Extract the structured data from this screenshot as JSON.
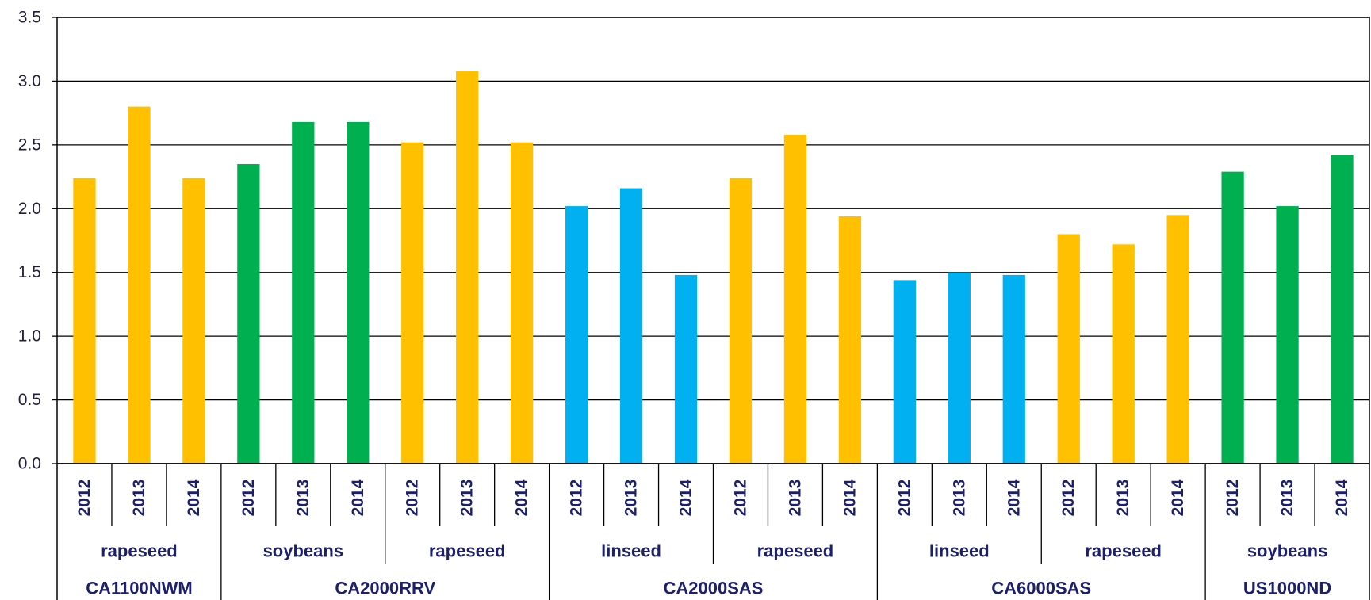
{
  "chart_data": {
    "type": "bar",
    "ylim": [
      0,
      3.5
    ],
    "yticks": [
      "0.0",
      "0.5",
      "1.0",
      "1.5",
      "2.0",
      "2.5",
      "3.0",
      "3.5"
    ],
    "grid": true,
    "colors": {
      "rapeseed": "#FFC000",
      "soybeans": "#00B050",
      "linseed": "#00B0F0"
    },
    "groups": [
      {
        "site": "CA1100NWM",
        "crops": [
          {
            "crop": "rapeseed",
            "years": [
              "2012",
              "2013",
              "2014"
            ],
            "values": [
              2.24,
              2.8,
              2.24
            ]
          }
        ]
      },
      {
        "site": "CA2000RRV",
        "crops": [
          {
            "crop": "soybeans",
            "years": [
              "2012",
              "2013",
              "2014"
            ],
            "values": [
              2.35,
              2.68,
              2.68
            ]
          },
          {
            "crop": "rapeseed",
            "years": [
              "2012",
              "2013",
              "2014"
            ],
            "values": [
              2.52,
              3.08,
              2.52
            ]
          }
        ]
      },
      {
        "site": "CA2000SAS",
        "crops": [
          {
            "crop": "linseed",
            "years": [
              "2012",
              "2013",
              "2014"
            ],
            "values": [
              2.02,
              2.16,
              1.48
            ]
          },
          {
            "crop": "rapeseed",
            "years": [
              "2012",
              "2013",
              "2014"
            ],
            "values": [
              2.24,
              2.58,
              1.94
            ]
          }
        ]
      },
      {
        "site": "CA6000SAS",
        "crops": [
          {
            "crop": "linseed",
            "years": [
              "2012",
              "2013",
              "2014"
            ],
            "values": [
              1.44,
              1.5,
              1.48
            ]
          },
          {
            "crop": "rapeseed",
            "years": [
              "2012",
              "2013",
              "2014"
            ],
            "values": [
              1.8,
              1.72,
              1.95
            ]
          }
        ]
      },
      {
        "site": "US1000ND",
        "crops": [
          {
            "crop": "soybeans",
            "years": [
              "2012",
              "2013",
              "2014"
            ],
            "values": [
              2.29,
              2.02,
              2.42
            ]
          }
        ]
      }
    ]
  }
}
